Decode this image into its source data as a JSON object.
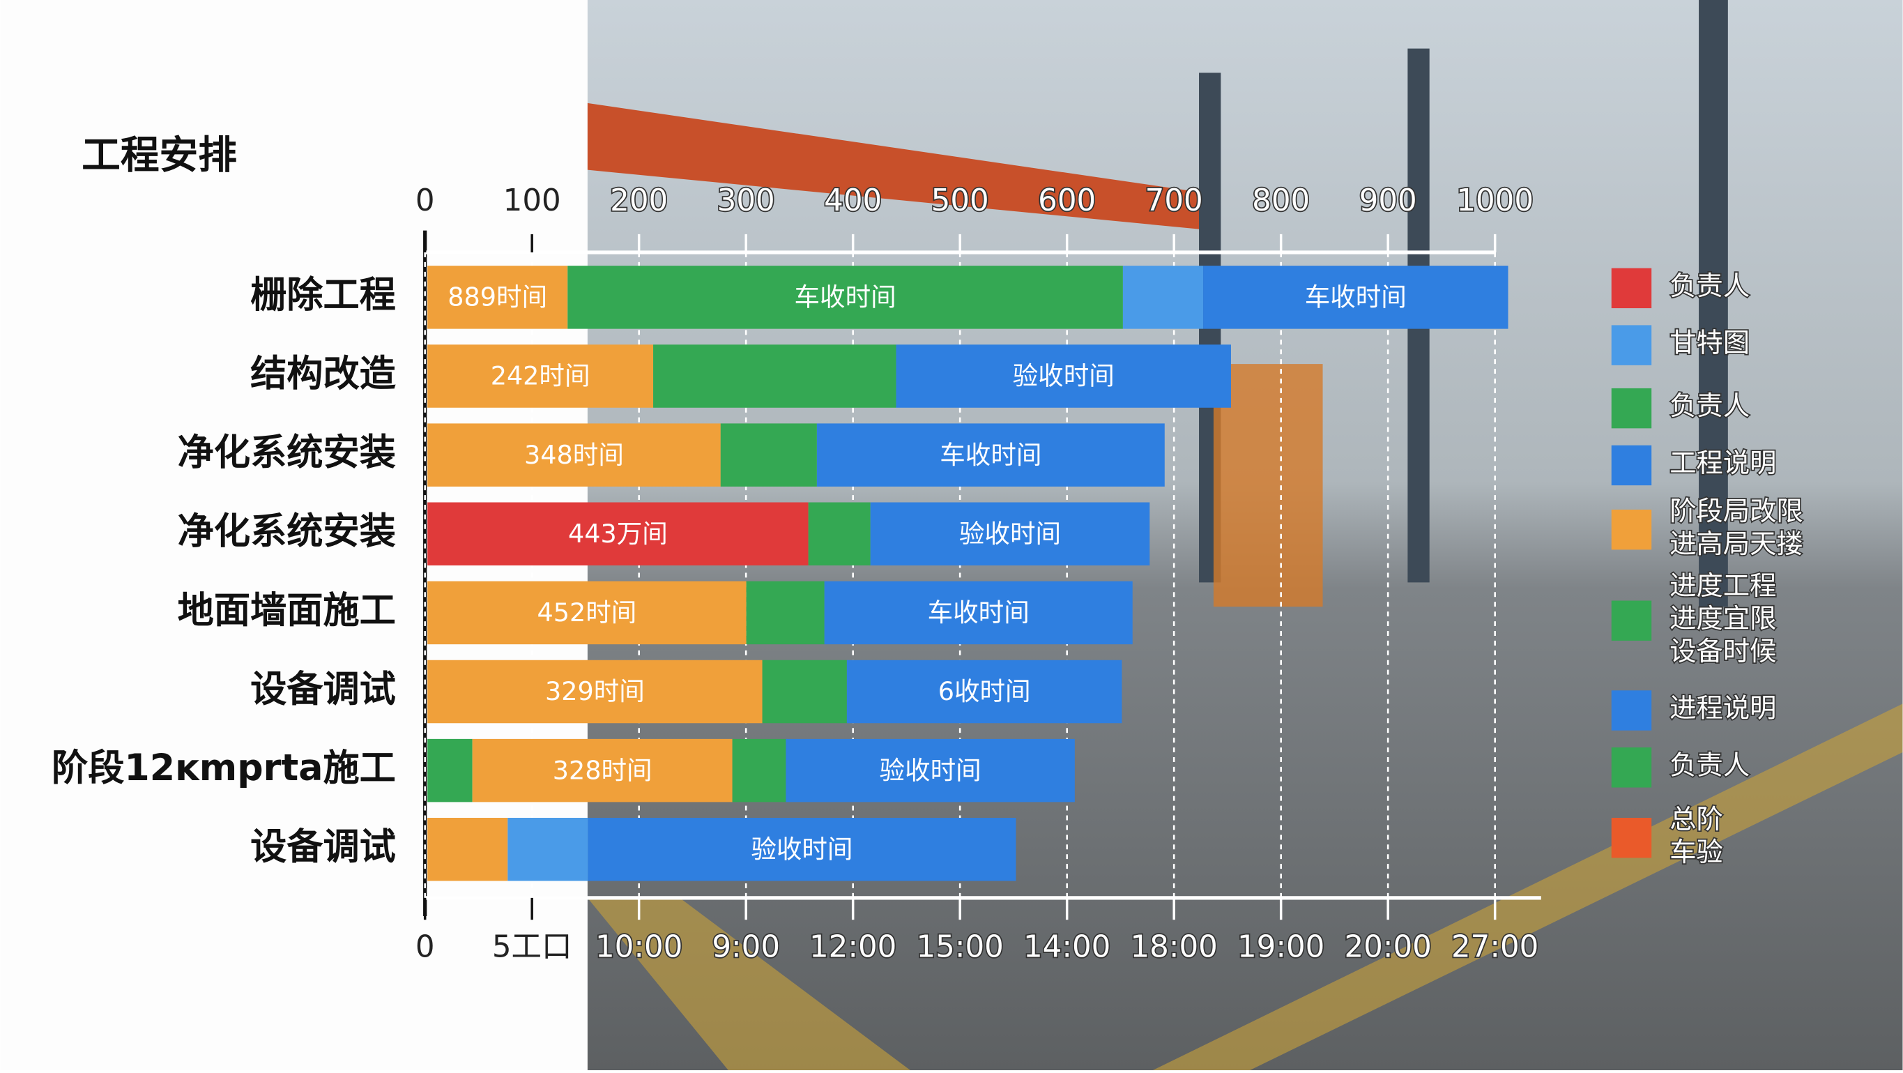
{
  "chart_data": {
    "type": "stacked-bar",
    "title": "工程安排",
    "categories": [
      "栅除工程",
      "结构改造",
      "净化系统安装",
      "净化系统安装",
      "地面墙面施工",
      "设备调试",
      "阶段12ĸmprta施工",
      "设备调试"
    ],
    "bars": [
      {
        "segments": [
          {
            "value": 131,
            "color": "#f0a03a",
            "text": "889时间"
          },
          {
            "value": 519,
            "color": "#34a853",
            "text": "车收时间"
          },
          {
            "value": 75,
            "color": "#4a9be8"
          },
          {
            "value": 285,
            "color": "#2f7fe0",
            "text": "车收时间"
          }
        ]
      },
      {
        "segments": [
          {
            "value": 211,
            "color": "#f0a03a",
            "text": "242时间"
          },
          {
            "value": 227,
            "color": "#34a853"
          },
          {
            "value": 313,
            "color": "#2f7fe0",
            "text": "验收时间"
          }
        ]
      },
      {
        "segments": [
          {
            "value": 274,
            "color": "#f0a03a",
            "text": "348时间"
          },
          {
            "value": 90,
            "color": "#34a853"
          },
          {
            "value": 325,
            "color": "#2f7fe0",
            "text": "车收时间"
          }
        ]
      },
      {
        "segments": [
          {
            "value": 356,
            "color": "#e03a3a",
            "text": "443万间"
          },
          {
            "value": 58,
            "color": "#34a853"
          },
          {
            "value": 261,
            "color": "#2f7fe0",
            "text": "验收时间"
          }
        ]
      },
      {
        "segments": [
          {
            "value": 298,
            "color": "#f0a03a",
            "text": "452时间"
          },
          {
            "value": 73,
            "color": "#34a853"
          },
          {
            "value": 288,
            "color": "#2f7fe0",
            "text": "车收时间"
          }
        ]
      },
      {
        "segments": [
          {
            "value": 313,
            "color": "#f0a03a",
            "text": "329时间"
          },
          {
            "value": 79,
            "color": "#34a853"
          },
          {
            "value": 257,
            "color": "#2f7fe0",
            "text": "6收时间"
          }
        ]
      },
      {
        "segments": [
          {
            "value": 42,
            "color": "#34a853"
          },
          {
            "value": 243,
            "color": "#f0a03a",
            "text": "328时间"
          },
          {
            "value": 50,
            "color": "#34a853"
          },
          {
            "value": 270,
            "color": "#2f7fe0",
            "text": "验收时间"
          }
        ]
      },
      {
        "segments": [
          {
            "value": 75,
            "color": "#f0a03a"
          },
          {
            "value": 75,
            "color": "#4a9be8"
          },
          {
            "value": 400,
            "color": "#2f7fe0",
            "text": "验收时间"
          }
        ]
      }
    ],
    "xlim": [
      0,
      1000
    ],
    "xticks": [
      0,
      100,
      200,
      300,
      400,
      500,
      600,
      700,
      800,
      900,
      1000
    ],
    "x2ticks": [
      0,
      {
        "value": 100,
        "label": "5工口"
      },
      {
        "value": 200,
        "label": "10:00"
      },
      {
        "value": 300,
        "label": "9:00"
      },
      {
        "value": 400,
        "label": "12:00"
      },
      {
        "value": 500,
        "label": "15:00"
      },
      {
        "value": 600,
        "label": "14:00"
      },
      {
        "value": 700,
        "label": "18:00"
      },
      {
        "value": 800,
        "label": "19:00"
      },
      {
        "value": 900,
        "label": "20:00"
      },
      {
        "value": 1000,
        "label": "27:00"
      }
    ],
    "grid": true,
    "legend": [
      {
        "color": "#e03a3a",
        "lines": [
          "负责人"
        ]
      },
      {
        "color": "#4a9be8",
        "lines": [
          "甘特图"
        ]
      },
      {
        "color": "#34a853",
        "lines": [
          "负责人"
        ]
      },
      {
        "color": "#2f7fe0",
        "lines": [
          "工程说明"
        ]
      },
      {
        "color": "#f0a03a",
        "lines": [
          "阶段局改限",
          "进高局天搂"
        ]
      },
      {
        "color": "#34a853",
        "lines": [
          "进度工程",
          "进度宜限",
          "设备时候"
        ]
      },
      {
        "color": "#2f7fe0",
        "lines": [
          "进程说明"
        ]
      },
      {
        "color": "#34a853",
        "lines": [
          "负责人"
        ]
      },
      {
        "color": "#ea5a2a",
        "lines": [
          "总阶",
          "车验"
        ]
      }
    ]
  }
}
